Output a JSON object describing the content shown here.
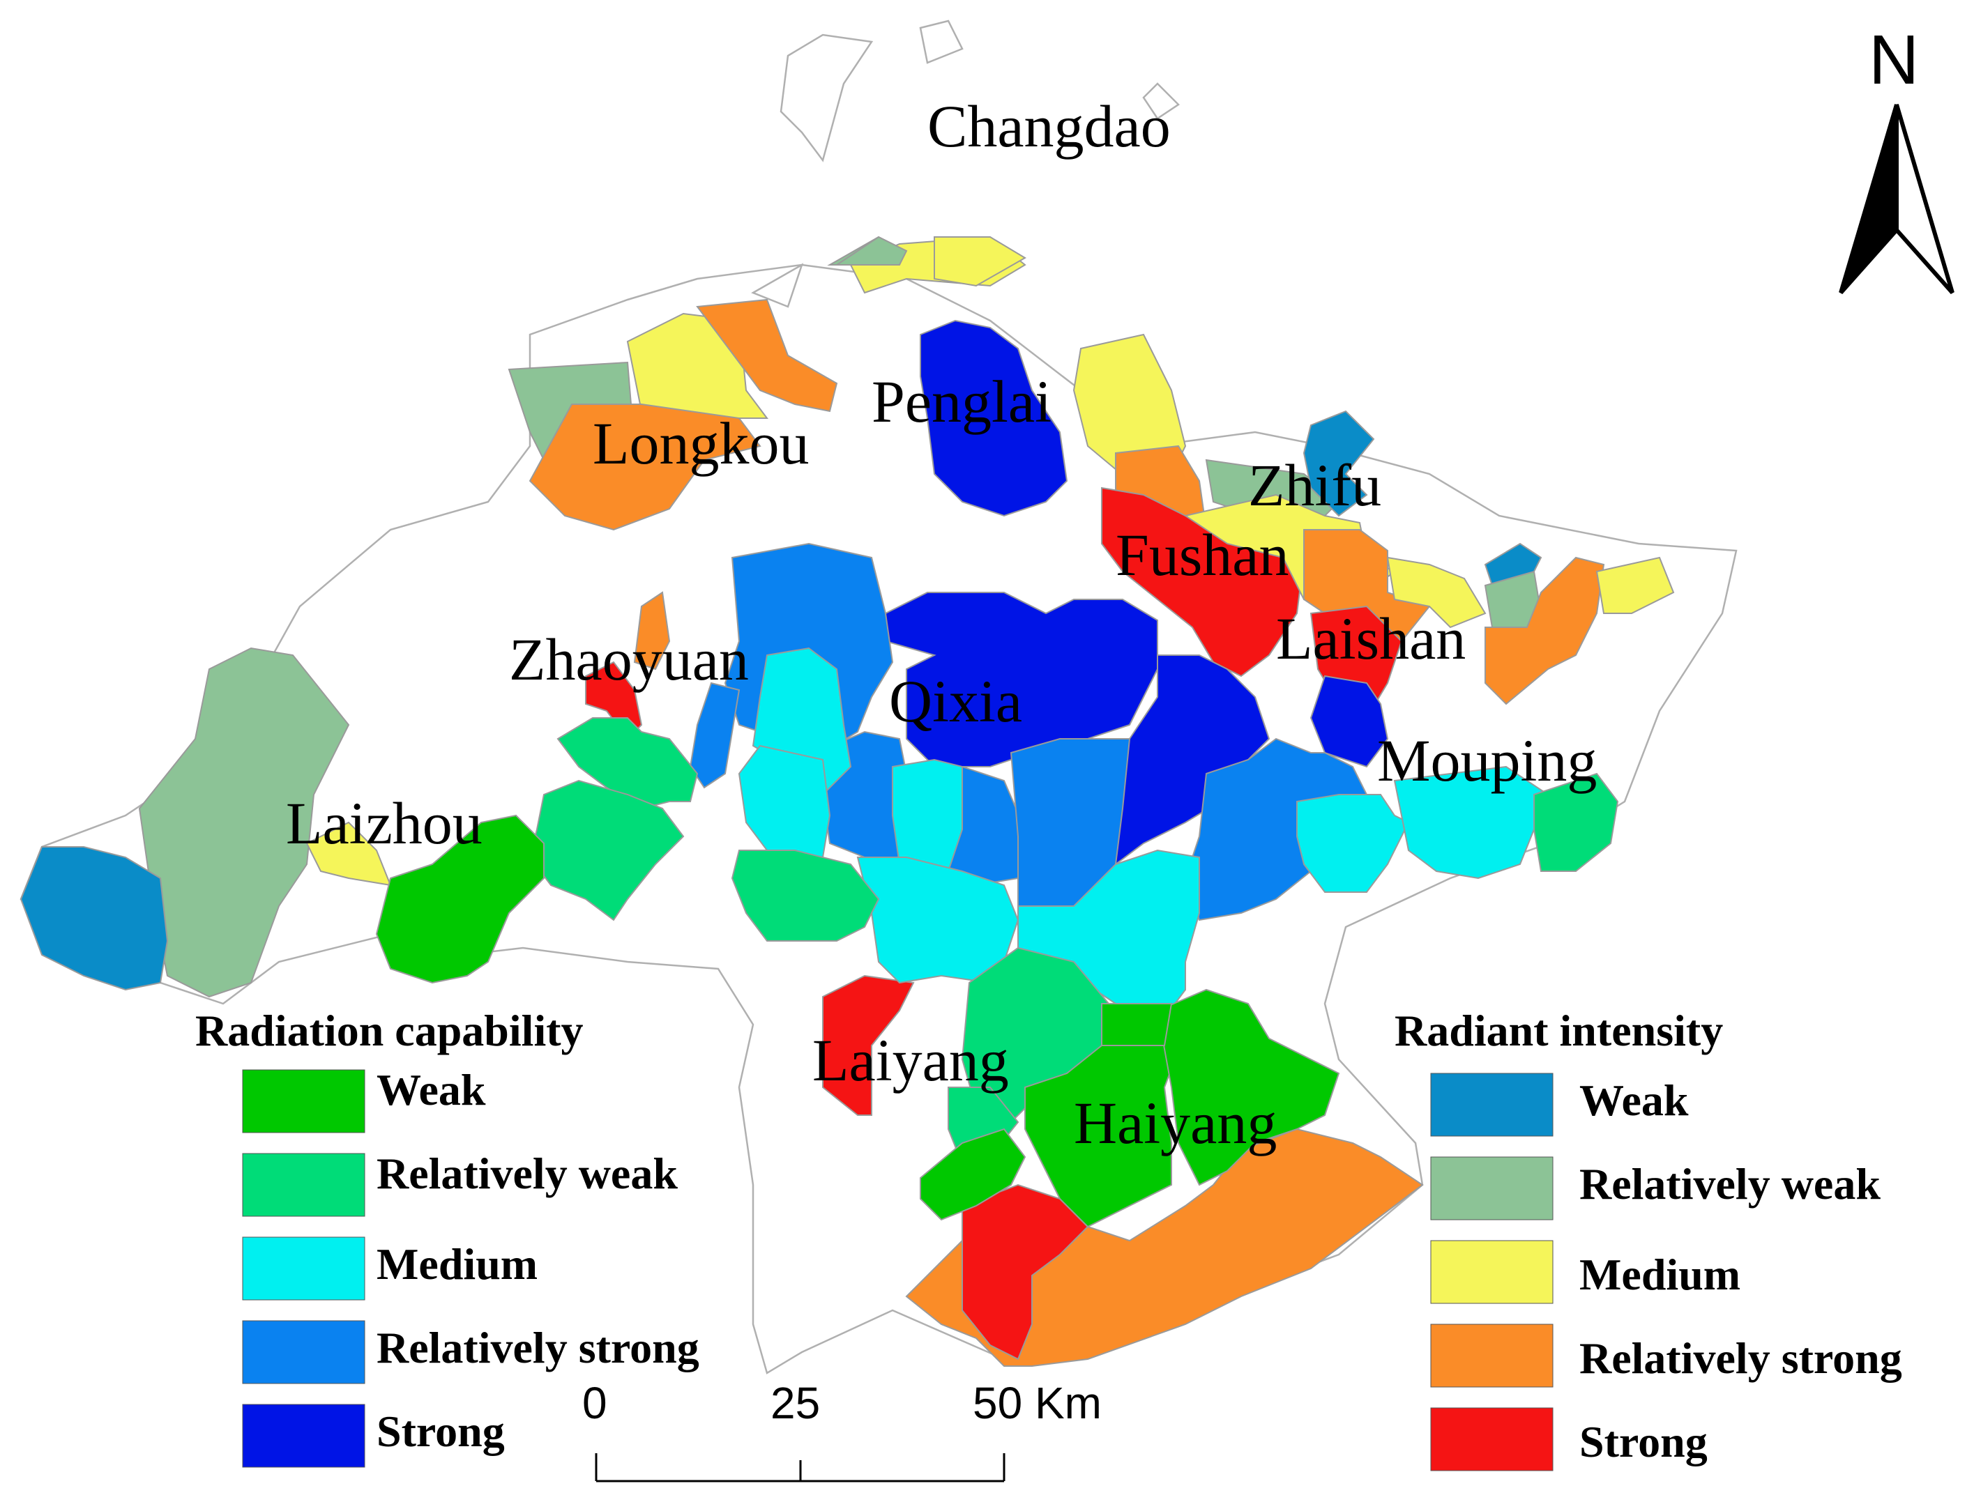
{
  "map": {
    "places": [
      "Changdao",
      "Penglai",
      "Longkou",
      "Zhifu",
      "Fushan",
      "Laishan",
      "Zhaoyuan",
      "Qixia",
      "Mouping",
      "Laizhou",
      "Laiyang",
      "Haiyang"
    ],
    "north_label": "N",
    "scale_bar": {
      "ticks": [
        "0",
        "25",
        "50 Km"
      ]
    }
  },
  "legend_capability": {
    "title": "Radiation capability",
    "items": [
      {
        "label": "Weak",
        "color": "#00c800"
      },
      {
        "label": "Relatively weak",
        "color": "#00dc78"
      },
      {
        "label": "Medium",
        "color": "#00f0f0"
      },
      {
        "label": "Relatively strong",
        "color": "#0a82f0"
      },
      {
        "label": "Strong",
        "color": "#0014e6"
      }
    ]
  },
  "legend_intensity": {
    "title": "Radiant intensity",
    "items": [
      {
        "label": "Weak",
        "color": "#0a8cc8"
      },
      {
        "label": "Relatively weak",
        "color": "#8cc396"
      },
      {
        "label": "Medium",
        "color": "#f5f55a"
      },
      {
        "label": "Relatively strong",
        "color": "#fa8c28"
      },
      {
        "label": "Strong",
        "color": "#f51414"
      }
    ]
  }
}
